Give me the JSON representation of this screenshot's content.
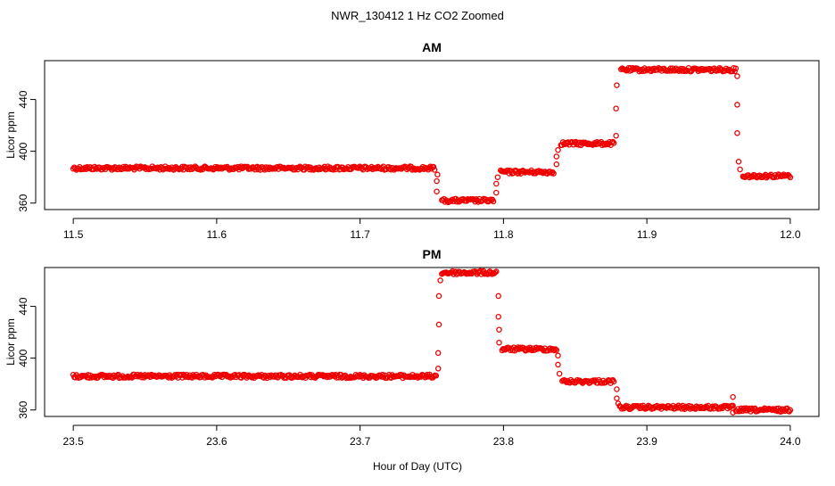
{
  "figure_title": "NWR_130412  1 Hz CO2 Zoomed",
  "common_xlabel": "Hour of Day (UTC)",
  "marker_color": "#ee0000",
  "chart_data": [
    {
      "type": "scatter",
      "title": "AM",
      "xlabel": "",
      "ylabel": "Licor ppm",
      "xlim": [
        11.48,
        12.02
      ],
      "ylim": [
        355,
        470
      ],
      "xticks": [
        11.5,
        11.6,
        11.7,
        11.8,
        11.9,
        12.0
      ],
      "xtick_labels": [
        "11.5",
        "11.6",
        "11.7",
        "11.8",
        "11.9",
        "12.0"
      ],
      "yticks": [
        360,
        400,
        440
      ],
      "ytick_labels": [
        "360",
        "400",
        "440"
      ],
      "grid": false,
      "legend": "none",
      "segments": [
        {
          "x": [
            11.5,
            11.752
          ],
          "y": 387
        },
        {
          "x": [
            11.757,
            11.793
          ],
          "y": 362
        },
        {
          "x": [
            11.798,
            11.835
          ],
          "y": 384
        },
        {
          "x": [
            11.84,
            11.877
          ],
          "y": 406
        },
        {
          "x": [
            11.882,
            11.962
          ],
          "y": 463
        },
        {
          "x": [
            11.967,
            12.0
          ],
          "y": 381
        }
      ],
      "transitions": [
        {
          "x": 11.7535,
          "y": 369
        },
        {
          "x": 11.7535,
          "y": 377
        },
        {
          "x": 11.754,
          "y": 382
        },
        {
          "x": 11.795,
          "y": 368
        },
        {
          "x": 11.795,
          "y": 375
        },
        {
          "x": 11.796,
          "y": 380
        },
        {
          "x": 11.837,
          "y": 390
        },
        {
          "x": 11.837,
          "y": 396
        },
        {
          "x": 11.838,
          "y": 401
        },
        {
          "x": 11.8785,
          "y": 412
        },
        {
          "x": 11.8785,
          "y": 433
        },
        {
          "x": 11.879,
          "y": 451
        },
        {
          "x": 11.963,
          "y": 458
        },
        {
          "x": 11.963,
          "y": 436
        },
        {
          "x": 11.963,
          "y": 414
        },
        {
          "x": 11.964,
          "y": 392
        },
        {
          "x": 11.965,
          "y": 386
        }
      ]
    },
    {
      "type": "scatter",
      "title": "PM",
      "xlabel": "",
      "ylabel": "Licor ppm",
      "xlim": [
        23.48,
        24.02
      ],
      "ylim": [
        355,
        470
      ],
      "xticks": [
        23.5,
        23.6,
        23.7,
        23.8,
        23.9,
        24.0
      ],
      "xtick_labels": [
        "23.5",
        "23.6",
        "23.7",
        "23.8",
        "23.9",
        "24.0"
      ],
      "yticks": [
        360,
        400,
        440
      ],
      "ytick_labels": [
        "360",
        "400",
        "440"
      ],
      "grid": false,
      "legend": "none",
      "segments": [
        {
          "x": [
            23.5,
            23.753
          ],
          "y": 386
        },
        {
          "x": [
            23.757,
            23.795
          ],
          "y": 466
        },
        {
          "x": [
            23.799,
            23.837
          ],
          "y": 407
        },
        {
          "x": [
            23.841,
            23.877
          ],
          "y": 382
        },
        {
          "x": [
            23.881,
            23.96
          ],
          "y": 362
        },
        {
          "x": [
            23.962,
            24.0
          ],
          "y": 360
        }
      ],
      "transitions": [
        {
          "x": 23.7545,
          "y": 392
        },
        {
          "x": 23.7545,
          "y": 404
        },
        {
          "x": 23.755,
          "y": 426
        },
        {
          "x": 23.755,
          "y": 448
        },
        {
          "x": 23.756,
          "y": 460
        },
        {
          "x": 23.7965,
          "y": 448
        },
        {
          "x": 23.7965,
          "y": 432
        },
        {
          "x": 23.797,
          "y": 422
        },
        {
          "x": 23.797,
          "y": 412
        },
        {
          "x": 23.838,
          "y": 402
        },
        {
          "x": 23.838,
          "y": 395
        },
        {
          "x": 23.839,
          "y": 388
        },
        {
          "x": 23.879,
          "y": 376
        },
        {
          "x": 23.879,
          "y": 369
        },
        {
          "x": 23.88,
          "y": 365
        },
        {
          "x": 23.96,
          "y": 370
        },
        {
          "x": 23.96,
          "y": 358
        }
      ]
    }
  ]
}
